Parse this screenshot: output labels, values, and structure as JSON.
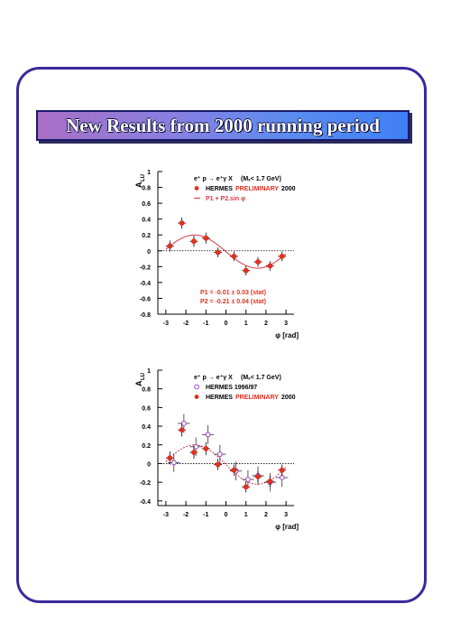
{
  "page": {
    "title": "New Results from 2000 running period",
    "colors": {
      "frame": "#3a2a9a",
      "data_2000": "#e03020",
      "data_9697": "#a04ac8",
      "fit": "#d83a4a"
    }
  },
  "chart_data": [
    {
      "type": "scatter",
      "ylabel": "A",
      "ylabel_sub": "LU",
      "xlabel": "φ [rad]",
      "xlim": [
        -3.4,
        3.4
      ],
      "ylim": [
        -0.8,
        1.0
      ],
      "xticks": [
        -3,
        -2,
        -1,
        0,
        1,
        2,
        3
      ],
      "yticks": [
        1,
        0.8,
        0.6,
        0.4,
        0.2,
        0,
        -0.2,
        -0.4,
        -0.6,
        -0.8
      ],
      "ytick_labels": [
        "1",
        "0.8",
        "0.6",
        "0.4",
        "0.2",
        "0",
        "-0.2",
        "-0.4",
        "-0.6",
        "-0.8"
      ],
      "legend": {
        "reaction": "e⁺ p → e⁺γ X",
        "cut": "(Mₓ< 1.7 GeV)",
        "entries": [
          {
            "label": "HERMES",
            "label2": "PRELIMINARY",
            "label3": "2000",
            "marker": "filled-circle"
          },
          {
            "label": "P1 + P2.sin φ",
            "marker": "dashed-line"
          }
        ]
      },
      "annotations": [
        "P1 = -0.01 ± 0.03 (stat)",
        "P2 = -0.21 ± 0.04 (stat)"
      ],
      "fit": {
        "p1": -0.01,
        "p2": -0.21
      },
      "series": [
        {
          "name": "HERMES PRELIMINARY 2000",
          "marker": "filled-circle",
          "points": [
            {
              "x": -2.8,
              "y": 0.06,
              "yerr": 0.07,
              "xerr": 0.2
            },
            {
              "x": -2.2,
              "y": 0.35,
              "yerr": 0.07,
              "xerr": 0.2
            },
            {
              "x": -1.6,
              "y": 0.12,
              "yerr": 0.07,
              "xerr": 0.2
            },
            {
              "x": -1.0,
              "y": 0.16,
              "yerr": 0.07,
              "xerr": 0.2
            },
            {
              "x": -0.4,
              "y": -0.02,
              "yerr": 0.06,
              "xerr": 0.2
            },
            {
              "x": 0.4,
              "y": -0.07,
              "yerr": 0.06,
              "xerr": 0.2
            },
            {
              "x": 1.0,
              "y": -0.25,
              "yerr": 0.06,
              "xerr": 0.2
            },
            {
              "x": 1.6,
              "y": -0.14,
              "yerr": 0.06,
              "xerr": 0.2
            },
            {
              "x": 2.2,
              "y": -0.19,
              "yerr": 0.06,
              "xerr": 0.2
            },
            {
              "x": 2.8,
              "y": -0.07,
              "yerr": 0.06,
              "xerr": 0.2
            }
          ]
        }
      ]
    },
    {
      "type": "scatter",
      "ylabel": "A",
      "ylabel_sub": "LU",
      "xlabel": "φ [rad]",
      "xlim": [
        -3.4,
        3.4
      ],
      "ylim": [
        -0.45,
        1.0
      ],
      "xticks": [
        -3,
        -2,
        -1,
        0,
        1,
        2,
        3
      ],
      "yticks": [
        1,
        0.8,
        0.6,
        0.4,
        0.2,
        0,
        -0.2,
        -0.4
      ],
      "ytick_labels": [
        "1",
        "0.8",
        "0.6",
        "0.4",
        "0.2",
        "0",
        "-0.2",
        "-0.4"
      ],
      "legend": {
        "reaction": "e⁺ p → e⁺γ X",
        "cut": "(Mₓ< 1.7 GeV)",
        "entries": [
          {
            "label": "HERMES 1996/97",
            "marker": "open-circle"
          },
          {
            "label": "HERMES",
            "label2": "PRELIMINARY",
            "label3": "2000",
            "marker": "filled-circle"
          }
        ]
      },
      "fit": {
        "p1": -0.01,
        "p2": -0.21
      },
      "series": [
        {
          "name": "HERMES 1996/97",
          "marker": "open-circle",
          "points": [
            {
              "x": -2.6,
              "y": 0.01,
              "yerr": 0.1,
              "xerr": 0.3
            },
            {
              "x": -2.1,
              "y": 0.43,
              "yerr": 0.1,
              "xerr": 0.3
            },
            {
              "x": -1.5,
              "y": 0.18,
              "yerr": 0.1,
              "xerr": 0.3
            },
            {
              "x": -0.9,
              "y": 0.31,
              "yerr": 0.1,
              "xerr": 0.3
            },
            {
              "x": -0.3,
              "y": 0.1,
              "yerr": 0.1,
              "xerr": 0.3
            },
            {
              "x": 0.5,
              "y": -0.08,
              "yerr": 0.1,
              "xerr": 0.3
            },
            {
              "x": 1.1,
              "y": -0.17,
              "yerr": 0.1,
              "xerr": 0.3
            },
            {
              "x": 1.6,
              "y": -0.13,
              "yerr": 0.1,
              "xerr": 0.3
            },
            {
              "x": 2.2,
              "y": -0.2,
              "yerr": 0.1,
              "xerr": 0.3
            },
            {
              "x": 2.8,
              "y": -0.15,
              "yerr": 0.1,
              "xerr": 0.3
            }
          ]
        },
        {
          "name": "HERMES PRELIMINARY 2000",
          "marker": "filled-circle",
          "points": [
            {
              "x": -2.8,
              "y": 0.06,
              "yerr": 0.07,
              "xerr": 0.2
            },
            {
              "x": -2.2,
              "y": 0.36,
              "yerr": 0.07,
              "xerr": 0.2
            },
            {
              "x": -1.6,
              "y": 0.12,
              "yerr": 0.07,
              "xerr": 0.2
            },
            {
              "x": -1.0,
              "y": 0.16,
              "yerr": 0.07,
              "xerr": 0.2
            },
            {
              "x": -0.4,
              "y": -0.01,
              "yerr": 0.06,
              "xerr": 0.2
            },
            {
              "x": 0.4,
              "y": -0.07,
              "yerr": 0.06,
              "xerr": 0.2
            },
            {
              "x": 1.0,
              "y": -0.25,
              "yerr": 0.06,
              "xerr": 0.2
            },
            {
              "x": 1.6,
              "y": -0.14,
              "yerr": 0.06,
              "xerr": 0.2
            },
            {
              "x": 2.2,
              "y": -0.19,
              "yerr": 0.06,
              "xerr": 0.2
            },
            {
              "x": 2.8,
              "y": -0.07,
              "yerr": 0.06,
              "xerr": 0.2
            }
          ]
        }
      ]
    }
  ]
}
